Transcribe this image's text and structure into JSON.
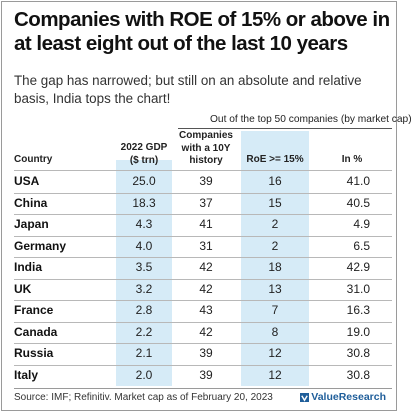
{
  "title": "Companies with ROE of 15% or above in at least eight out of the last 10 years",
  "subtitle": "The gap has narrowed; but still on an absolute and relative basis, India tops the chart!",
  "group_header": "Out of the top 50 companies (by market cap)",
  "source": "Source: IMF; Refinitiv. Market cap as of February 20, 2023",
  "brand": "ValueResearch",
  "colors": {
    "highlight": "#d6ebf7",
    "brand": "#1f5e9a"
  },
  "chart_data": {
    "type": "table",
    "title": "Companies with ROE of 15% or above in at least eight out of the last 10 years",
    "subtitle": "The gap has narrowed; but still on an absolute and relative basis, India tops the chart!",
    "group_header": "Out of the top 50 companies (by market cap)",
    "columns": [
      "Country",
      "2022 GDP ($ trn)",
      "Companies with a 10Y history",
      "RoE >= 15%",
      "In %"
    ],
    "highlighted_columns": [
      "2022 GDP ($ trn)",
      "RoE >= 15%"
    ],
    "rows": [
      {
        "country": "USA",
        "gdp": "25.0",
        "history": "39",
        "roe": "16",
        "pct": "41.0"
      },
      {
        "country": "China",
        "gdp": "18.3",
        "history": "37",
        "roe": "15",
        "pct": "40.5"
      },
      {
        "country": "Japan",
        "gdp": "4.3",
        "history": "41",
        "roe": "2",
        "pct": "4.9"
      },
      {
        "country": "Germany",
        "gdp": "4.0",
        "history": "31",
        "roe": "2",
        "pct": "6.5"
      },
      {
        "country": "India",
        "gdp": "3.5",
        "history": "42",
        "roe": "18",
        "pct": "42.9"
      },
      {
        "country": "UK",
        "gdp": "3.2",
        "history": "42",
        "roe": "13",
        "pct": "31.0"
      },
      {
        "country": "France",
        "gdp": "2.8",
        "history": "43",
        "roe": "7",
        "pct": "16.3"
      },
      {
        "country": "Canada",
        "gdp": "2.2",
        "history": "42",
        "roe": "8",
        "pct": "19.0"
      },
      {
        "country": "Russia",
        "gdp": "2.1",
        "history": "39",
        "roe": "12",
        "pct": "30.8"
      },
      {
        "country": "Italy",
        "gdp": "2.0",
        "history": "39",
        "roe": "12",
        "pct": "30.8"
      }
    ]
  }
}
